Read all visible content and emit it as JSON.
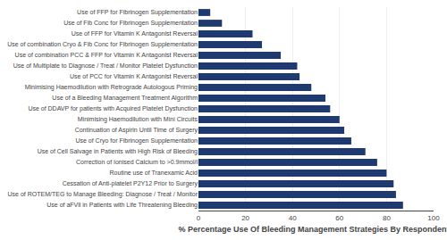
{
  "chart_data": {
    "type": "bar",
    "orientation": "horizontal",
    "categories": [
      "Use of FFP for Fibrinogen Supplementation",
      "Use of Fib Conc for Fibrinogen Supplementation",
      "Use of FFP for Vitamin K Antagonist Reversal",
      "Use of combination Cryo & Fib Conc for Fibrinogen Supplementation",
      "Use of combination PCC & FFP for Vitamin K Antagonist Reversal",
      "Use of Multiplate to Diagnose / Treat / Monitor Platelet Dysfunction",
      "Use of PCC for Vitamin K Antagonist Reversal",
      "Minimising Haemodilution with Retrograde Autologous Priming",
      "Use of a Bleeding Management Treatment Algorithm",
      "Use of DDAVP for patients with Acquired Platelet Dysfunction",
      "Minimising Haemodilution with Mini Circuits",
      "Continuation of Aspirin Until Time of Surgery",
      "Use of Cryo for Fibrinogen Supplementation",
      "Use of Cell Salvage in Patients with High Risk of Bleeding",
      "Correction of Ionised Calcium to >0.9mmol/l",
      "Routine use of Tranexamic Acid",
      "Cessation of Anti-platelet P2Y12 Prior to Surgery",
      "Use of ROTEM/TEG to Manage Bleeding: Diagnose / Treat / Monitor",
      "Use of aFVll in Patients with Life Threatening Bleeding"
    ],
    "values": [
      5,
      10,
      23,
      27,
      35,
      42,
      43,
      48,
      54,
      56,
      60,
      62,
      65,
      71,
      76,
      80,
      83,
      84,
      87
    ],
    "color": "#1F3A6E",
    "xlabel": "% Percentage Use Of Bleeding Management Strategies By Respondents",
    "xlim": [
      0,
      100
    ],
    "xticks": [
      0,
      20,
      40,
      60,
      80,
      100
    ],
    "grid": true
  }
}
